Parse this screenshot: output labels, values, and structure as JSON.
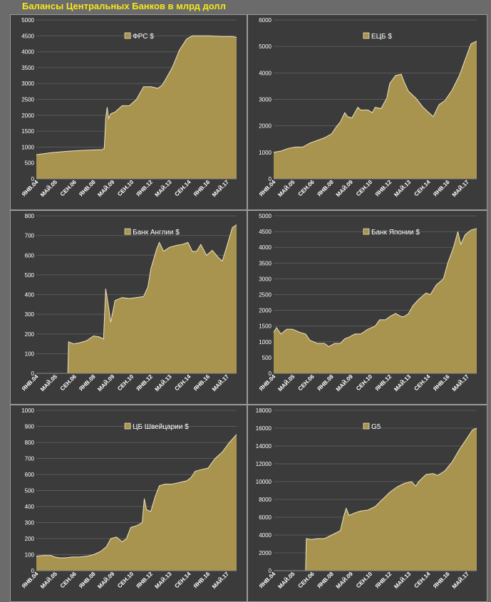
{
  "title": "Балансы Центральных Банков в млрд долл",
  "colors": {
    "fill": "#a8944f",
    "line": "#ede3c2",
    "grid": "#5a5a5a",
    "panel": "#3b3b3b"
  },
  "chart_data": [
    {
      "type": "area",
      "series_name": "ФРС  $",
      "legend": "top-center",
      "ylim": [
        0,
        5000
      ],
      "yticks": [
        0,
        500,
        1000,
        1500,
        2000,
        2500,
        3000,
        3500,
        4000,
        4500,
        5000
      ],
      "xlim": [
        2004.0,
        2018.0
      ],
      "xticks": [
        {
          "label": "ЯНВ.04",
          "x": 2004.0
        },
        {
          "label": "МАЙ.05",
          "x": 2005.33
        },
        {
          "label": "СЕН.06",
          "x": 2006.67
        },
        {
          "label": "ЯНВ.08",
          "x": 2008.0
        },
        {
          "label": "МАЙ.09",
          "x": 2009.33
        },
        {
          "label": "СЕН.10",
          "x": 2010.67
        },
        {
          "label": "ЯНВ.12",
          "x": 2012.0
        },
        {
          "label": "МАЙ.13",
          "x": 2013.33
        },
        {
          "label": "СЕН.14",
          "x": 2014.67
        },
        {
          "label": "ЯНВ.16",
          "x": 2016.0
        },
        {
          "label": "МАЙ.17",
          "x": 2017.33
        }
      ],
      "data": [
        [
          2004.0,
          760
        ],
        [
          2005.0,
          820
        ],
        [
          2006.0,
          860
        ],
        [
          2007.0,
          890
        ],
        [
          2008.0,
          910
        ],
        [
          2008.6,
          920
        ],
        [
          2008.75,
          960
        ],
        [
          2008.85,
          1900
        ],
        [
          2008.95,
          2250
        ],
        [
          2009.05,
          1900
        ],
        [
          2009.2,
          2050
        ],
        [
          2009.5,
          2100
        ],
        [
          2010.0,
          2300
        ],
        [
          2010.5,
          2300
        ],
        [
          2011.0,
          2500
        ],
        [
          2011.5,
          2900
        ],
        [
          2012.0,
          2900
        ],
        [
          2012.5,
          2850
        ],
        [
          2012.8,
          2950
        ],
        [
          2013.0,
          3100
        ],
        [
          2013.5,
          3500
        ],
        [
          2014.0,
          4050
        ],
        [
          2014.5,
          4400
        ],
        [
          2014.9,
          4500
        ],
        [
          2016.0,
          4500
        ],
        [
          2017.0,
          4480
        ],
        [
          2017.7,
          4480
        ],
        [
          2018.0,
          4450
        ]
      ]
    },
    {
      "type": "area",
      "series_name": "ЕЦБ $",
      "legend": "top-center",
      "ylim": [
        0,
        6000
      ],
      "yticks": [
        0,
        1000,
        2000,
        3000,
        4000,
        5000,
        6000
      ],
      "xlim": [
        2004.0,
        2018.0
      ],
      "xticks": [
        {
          "label": "ЯНВ.04",
          "x": 2004.0
        },
        {
          "label": "МАЙ.05",
          "x": 2005.33
        },
        {
          "label": "СЕН.06",
          "x": 2006.67
        },
        {
          "label": "ЯНВ.08",
          "x": 2008.0
        },
        {
          "label": "МАЙ.09",
          "x": 2009.33
        },
        {
          "label": "СЕН.10",
          "x": 2010.67
        },
        {
          "label": "ЯНВ.12",
          "x": 2012.0
        },
        {
          "label": "МАЙ.13",
          "x": 2013.33
        },
        {
          "label": "СЕН.14",
          "x": 2014.67
        },
        {
          "label": "ЯНВ.16",
          "x": 2016.0
        },
        {
          "label": "МАЙ.17",
          "x": 2017.33
        }
      ],
      "data": [
        [
          2004.0,
          1000
        ],
        [
          2004.5,
          1050
        ],
        [
          2005.0,
          1150
        ],
        [
          2005.5,
          1200
        ],
        [
          2006.0,
          1200
        ],
        [
          2006.5,
          1350
        ],
        [
          2007.0,
          1450
        ],
        [
          2007.5,
          1550
        ],
        [
          2008.0,
          1700
        ],
        [
          2008.3,
          1950
        ],
        [
          2008.6,
          2150
        ],
        [
          2008.9,
          2500
        ],
        [
          2009.1,
          2350
        ],
        [
          2009.4,
          2300
        ],
        [
          2009.8,
          2700
        ],
        [
          2010.0,
          2600
        ],
        [
          2010.5,
          2600
        ],
        [
          2010.8,
          2500
        ],
        [
          2011.0,
          2700
        ],
        [
          2011.4,
          2650
        ],
        [
          2011.8,
          3050
        ],
        [
          2012.0,
          3600
        ],
        [
          2012.4,
          3900
        ],
        [
          2012.8,
          3950
        ],
        [
          2013.0,
          3650
        ],
        [
          2013.3,
          3300
        ],
        [
          2013.8,
          3050
        ],
        [
          2014.3,
          2700
        ],
        [
          2014.7,
          2500
        ],
        [
          2015.0,
          2350
        ],
        [
          2015.4,
          2800
        ],
        [
          2015.8,
          2950
        ],
        [
          2016.3,
          3350
        ],
        [
          2016.8,
          3900
        ],
        [
          2017.2,
          4500
        ],
        [
          2017.6,
          5100
        ],
        [
          2018.0,
          5200
        ]
      ]
    },
    {
      "type": "area",
      "series_name": "Банк Англии $",
      "legend": "top-center",
      "ylim": [
        0,
        800
      ],
      "yticks": [
        0,
        100,
        200,
        300,
        400,
        500,
        600,
        700,
        800
      ],
      "xlim": [
        2004.0,
        2018.0
      ],
      "xticks": [
        {
          "label": "ЯНВ.04",
          "x": 2004.0
        },
        {
          "label": "МАЙ.05",
          "x": 2005.33
        },
        {
          "label": "СЕН.06",
          "x": 2006.67
        },
        {
          "label": "ЯНВ.08",
          "x": 2008.0
        },
        {
          "label": "МАЙ.09",
          "x": 2009.33
        },
        {
          "label": "СЕН.10",
          "x": 2010.67
        },
        {
          "label": "ЯНВ.12",
          "x": 2012.0
        },
        {
          "label": "МАЙ.13",
          "x": 2013.33
        },
        {
          "label": "СЕН.14",
          "x": 2014.67
        },
        {
          "label": "ЯНВ.16",
          "x": 2016.0
        },
        {
          "label": "МАЙ.17",
          "x": 2017.33
        }
      ],
      "data": [
        [
          2004.0,
          0
        ],
        [
          2006.2,
          0
        ],
        [
          2006.25,
          160
        ],
        [
          2006.6,
          150
        ],
        [
          2007.0,
          155
        ],
        [
          2007.5,
          165
        ],
        [
          2008.0,
          190
        ],
        [
          2008.4,
          185
        ],
        [
          2008.7,
          175
        ],
        [
          2008.85,
          430
        ],
        [
          2009.0,
          360
        ],
        [
          2009.2,
          260
        ],
        [
          2009.5,
          370
        ],
        [
          2010.0,
          385
        ],
        [
          2010.5,
          380
        ],
        [
          2011.0,
          385
        ],
        [
          2011.5,
          390
        ],
        [
          2011.8,
          440
        ],
        [
          2012.0,
          530
        ],
        [
          2012.4,
          630
        ],
        [
          2012.6,
          665
        ],
        [
          2012.9,
          620
        ],
        [
          2013.3,
          640
        ],
        [
          2013.8,
          650
        ],
        [
          2014.2,
          655
        ],
        [
          2014.6,
          665
        ],
        [
          2014.9,
          620
        ],
        [
          2015.2,
          620
        ],
        [
          2015.5,
          655
        ],
        [
          2015.9,
          600
        ],
        [
          2016.3,
          625
        ],
        [
          2016.7,
          590
        ],
        [
          2017.0,
          570
        ],
        [
          2017.3,
          640
        ],
        [
          2017.7,
          740
        ],
        [
          2018.0,
          755
        ]
      ]
    },
    {
      "type": "area",
      "series_name": "Банк Японии $",
      "legend": "top-center",
      "ylim": [
        0,
        5000
      ],
      "yticks": [
        0,
        500,
        1000,
        1500,
        2000,
        2500,
        3000,
        3500,
        4000,
        4500,
        5000
      ],
      "xlim": [
        2004.0,
        2018.0
      ],
      "xticks": [
        {
          "label": "ЯНВ.04",
          "x": 2004.0
        },
        {
          "label": "МАЙ.05",
          "x": 2005.33
        },
        {
          "label": "СЕН.06",
          "x": 2006.67
        },
        {
          "label": "ЯНВ.08",
          "x": 2008.0
        },
        {
          "label": "МАЙ.09",
          "x": 2009.33
        },
        {
          "label": "СЕН.10",
          "x": 2010.67
        },
        {
          "label": "ЯНВ.12",
          "x": 2012.0
        },
        {
          "label": "МАЙ.13",
          "x": 2013.33
        },
        {
          "label": "СЕН.14",
          "x": 2014.67
        },
        {
          "label": "ЯНВ.16",
          "x": 2016.0
        },
        {
          "label": "МАЙ.17",
          "x": 2017.33
        }
      ],
      "data": [
        [
          2004.0,
          1300
        ],
        [
          2004.2,
          1450
        ],
        [
          2004.5,
          1250
        ],
        [
          2004.9,
          1400
        ],
        [
          2005.3,
          1400
        ],
        [
          2005.8,
          1300
        ],
        [
          2006.2,
          1250
        ],
        [
          2006.5,
          1050
        ],
        [
          2007.0,
          950
        ],
        [
          2007.5,
          950
        ],
        [
          2007.8,
          850
        ],
        [
          2008.2,
          950
        ],
        [
          2008.6,
          950
        ],
        [
          2008.9,
          1100
        ],
        [
          2009.2,
          1150
        ],
        [
          2009.6,
          1250
        ],
        [
          2010.0,
          1250
        ],
        [
          2010.5,
          1400
        ],
        [
          2011.0,
          1500
        ],
        [
          2011.3,
          1700
        ],
        [
          2011.7,
          1700
        ],
        [
          2012.0,
          1800
        ],
        [
          2012.4,
          1900
        ],
        [
          2012.8,
          1800
        ],
        [
          2013.0,
          1800
        ],
        [
          2013.3,
          1900
        ],
        [
          2013.6,
          2150
        ],
        [
          2014.0,
          2350
        ],
        [
          2014.5,
          2550
        ],
        [
          2014.8,
          2500
        ],
        [
          2015.2,
          2800
        ],
        [
          2015.7,
          3000
        ],
        [
          2016.0,
          3500
        ],
        [
          2016.4,
          4000
        ],
        [
          2016.7,
          4500
        ],
        [
          2016.9,
          4100
        ],
        [
          2017.2,
          4400
        ],
        [
          2017.6,
          4550
        ],
        [
          2018.0,
          4600
        ]
      ]
    },
    {
      "type": "area",
      "series_name": "ЦБ Швейцарии $",
      "legend": "top-center",
      "ylim": [
        0,
        1000
      ],
      "yticks": [
        0,
        100,
        200,
        300,
        400,
        500,
        600,
        700,
        800,
        900,
        1000
      ],
      "xlim": [
        2004.0,
        2018.0
      ],
      "xticks": [
        {
          "label": "ЯНВ.04",
          "x": 2004.0
        },
        {
          "label": "МАЙ.05",
          "x": 2005.33
        },
        {
          "label": "СЕН.06",
          "x": 2006.67
        },
        {
          "label": "ЯНВ.08",
          "x": 2008.0
        },
        {
          "label": "МАЙ.09",
          "x": 2009.33
        },
        {
          "label": "СЕН.10",
          "x": 2010.67
        },
        {
          "label": "ЯНВ.12",
          "x": 2012.0
        },
        {
          "label": "МАЙ.13",
          "x": 2013.33
        },
        {
          "label": "СЕН.14",
          "x": 2014.67
        },
        {
          "label": "ЯНВ.16",
          "x": 2016.0
        },
        {
          "label": "МАЙ.17",
          "x": 2017.33
        }
      ],
      "data": [
        [
          2004.0,
          90
        ],
        [
          2004.5,
          95
        ],
        [
          2005.0,
          95
        ],
        [
          2005.3,
          85
        ],
        [
          2005.6,
          80
        ],
        [
          2006.0,
          80
        ],
        [
          2006.5,
          85
        ],
        [
          2007.0,
          85
        ],
        [
          2007.5,
          90
        ],
        [
          2008.0,
          100
        ],
        [
          2008.5,
          120
        ],
        [
          2008.9,
          150
        ],
        [
          2009.2,
          200
        ],
        [
          2009.6,
          210
        ],
        [
          2010.0,
          180
        ],
        [
          2010.3,
          200
        ],
        [
          2010.6,
          270
        ],
        [
          2011.0,
          280
        ],
        [
          2011.4,
          300
        ],
        [
          2011.55,
          450
        ],
        [
          2011.7,
          380
        ],
        [
          2012.0,
          370
        ],
        [
          2012.3,
          460
        ],
        [
          2012.6,
          530
        ],
        [
          2013.0,
          540
        ],
        [
          2013.5,
          540
        ],
        [
          2014.0,
          550
        ],
        [
          2014.5,
          560
        ],
        [
          2014.8,
          580
        ],
        [
          2015.1,
          620
        ],
        [
          2015.5,
          630
        ],
        [
          2016.0,
          640
        ],
        [
          2016.5,
          700
        ],
        [
          2017.0,
          740
        ],
        [
          2017.5,
          800
        ],
        [
          2018.0,
          850
        ]
      ]
    },
    {
      "type": "area",
      "series_name": "G5",
      "legend": "top-center",
      "ylim": [
        0,
        18000
      ],
      "yticks": [
        0,
        2000,
        4000,
        6000,
        8000,
        10000,
        12000,
        14000,
        16000,
        18000
      ],
      "xlim": [
        2004.0,
        2018.0
      ],
      "xticks": [
        {
          "label": "ЯНВ.04",
          "x": 2004.0
        },
        {
          "label": "МАЙ.05",
          "x": 2005.33
        },
        {
          "label": "СЕН.06",
          "x": 2006.67
        },
        {
          "label": "ЯНВ.08",
          "x": 2008.0
        },
        {
          "label": "МАЙ.09",
          "x": 2009.33
        },
        {
          "label": "СЕН.10",
          "x": 2010.67
        },
        {
          "label": "ЯНВ.12",
          "x": 2012.0
        },
        {
          "label": "МАЙ.13",
          "x": 2013.33
        },
        {
          "label": "СЕН.14",
          "x": 2014.67
        },
        {
          "label": "ЯНВ.16",
          "x": 2016.0
        },
        {
          "label": "МАЙ.17",
          "x": 2017.33
        }
      ],
      "data": [
        [
          2004.0,
          0
        ],
        [
          2006.2,
          0
        ],
        [
          2006.25,
          3600
        ],
        [
          2006.6,
          3500
        ],
        [
          2007.0,
          3600
        ],
        [
          2007.5,
          3600
        ],
        [
          2008.0,
          4000
        ],
        [
          2008.6,
          4500
        ],
        [
          2008.85,
          6200
        ],
        [
          2009.0,
          7000
        ],
        [
          2009.2,
          6200
        ],
        [
          2009.6,
          6500
        ],
        [
          2010.0,
          6700
        ],
        [
          2010.5,
          6800
        ],
        [
          2011.0,
          7200
        ],
        [
          2011.5,
          8000
        ],
        [
          2012.0,
          8800
        ],
        [
          2012.5,
          9400
        ],
        [
          2013.0,
          9800
        ],
        [
          2013.5,
          10000
        ],
        [
          2013.8,
          9500
        ],
        [
          2014.0,
          10000
        ],
        [
          2014.5,
          10800
        ],
        [
          2015.0,
          10900
        ],
        [
          2015.3,
          10700
        ],
        [
          2015.8,
          11200
        ],
        [
          2016.3,
          12200
        ],
        [
          2016.8,
          13600
        ],
        [
          2017.3,
          14800
        ],
        [
          2017.7,
          15800
        ],
        [
          2018.0,
          16000
        ]
      ]
    }
  ]
}
